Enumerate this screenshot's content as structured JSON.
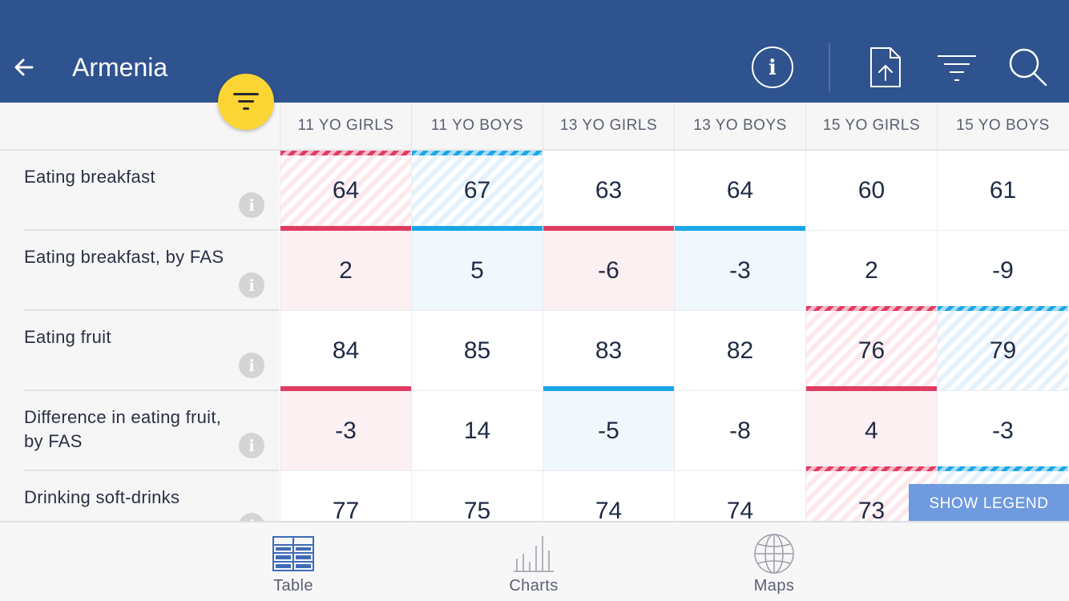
{
  "header": {
    "title": "Armenia",
    "icons": [
      "back-arrow-icon",
      "info-icon",
      "export-icon",
      "filter-lines-icon",
      "search-icon"
    ],
    "bg_color": "#2f538e"
  },
  "fab": {
    "icon": "filter-icon",
    "color": "#fbd534"
  },
  "table": {
    "columns": [
      "11 YO GIRLS",
      "11 YO BOYS",
      "13 YO GIRLS",
      "13 YO BOYS",
      "15 YO GIRLS",
      "15 YO BOYS"
    ],
    "rows": [
      {
        "label": "Eating breakfast",
        "values": [
          "64",
          "67",
          "63",
          "64",
          "60",
          "61"
        ]
      },
      {
        "label": "Eating breakfast, by FAS",
        "values": [
          "2",
          "5",
          "-6",
          "-3",
          "2",
          "-9"
        ]
      },
      {
        "label": "Eating fruit",
        "values": [
          "84",
          "85",
          "83",
          "82",
          "76",
          "79"
        ]
      },
      {
        "label": "Difference in eating fruit, by FAS",
        "values": [
          "-3",
          "14",
          "-5",
          "-8",
          "4",
          "-3"
        ]
      },
      {
        "label": "Drinking soft-drinks",
        "values": [
          "77",
          "75",
          "74",
          "74",
          "73",
          ""
        ]
      }
    ],
    "colors": {
      "girls": "#e03b62",
      "boys": "#1aa7e8"
    }
  },
  "legend_button": "SHOW LEGEND",
  "tabs": [
    {
      "label": "Table",
      "icon": "table-icon",
      "active": true
    },
    {
      "label": "Charts",
      "icon": "bar-chart-icon",
      "active": false
    },
    {
      "label": "Maps",
      "icon": "globe-icon",
      "active": false
    }
  ]
}
